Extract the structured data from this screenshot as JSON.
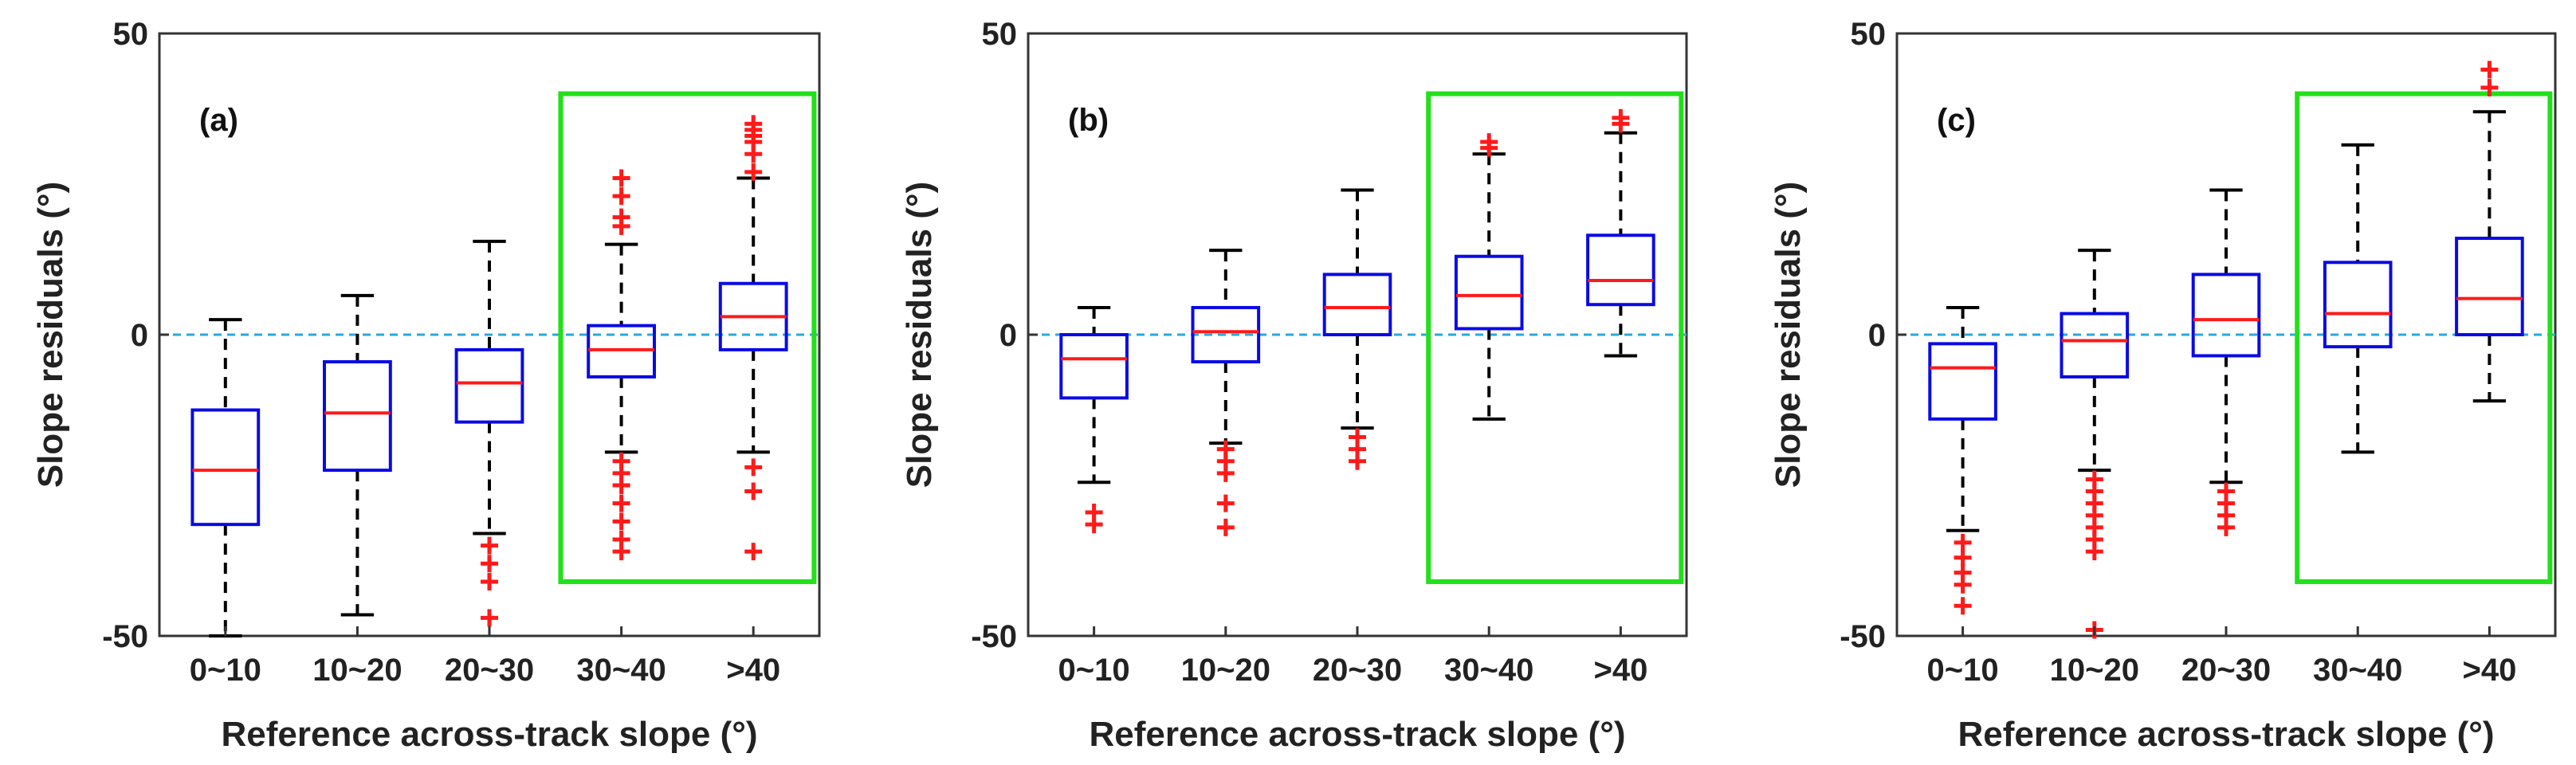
{
  "colors": {
    "box": "#0a0ae6",
    "median": "#ff1a1a",
    "outlier": "#ff1a1a",
    "whisker": "#000000",
    "zero_line": "#2aa8d8",
    "highlight": "#22e01a",
    "axes": "#333333"
  },
  "chart_data": [
    {
      "type": "box",
      "panel_label": "(a)",
      "xlabel": "Reference across-track slope (°)",
      "ylabel": "Slope residuals (°)",
      "ylim": [
        -50,
        50
      ],
      "yticks": [
        -50,
        0,
        50
      ],
      "categories": [
        "0~10",
        "10~20",
        "20~30",
        "30~40",
        ">40"
      ],
      "boxes": [
        {
          "whisker_low": -50,
          "q1": -31.5,
          "median": -22.5,
          "q3": -12.5,
          "whisker_high": 2.5,
          "outliers": []
        },
        {
          "whisker_low": -46.5,
          "q1": -22.5,
          "median": -13,
          "q3": -4.5,
          "whisker_high": 6.5,
          "outliers": []
        },
        {
          "whisker_low": -33,
          "q1": -14.5,
          "median": -8,
          "q3": -2.5,
          "whisker_high": 15.5,
          "outliers": [
            -35,
            -38,
            -41,
            -47
          ]
        },
        {
          "whisker_low": -19.5,
          "q1": -7,
          "median": -2.5,
          "q3": 1.5,
          "whisker_high": 15,
          "outliers": [
            -21,
            -23,
            -25,
            -28,
            -31,
            -34,
            -36,
            18,
            19.5,
            23,
            26
          ]
        },
        {
          "whisker_low": -19.5,
          "q1": -2.5,
          "median": 3,
          "q3": 8.5,
          "whisker_high": 26,
          "outliers": [
            -22,
            -26,
            -36,
            27,
            30,
            32,
            33,
            34,
            35
          ]
        }
      ],
      "reference_line": 0,
      "highlight_categories": [
        "30~40",
        ">40"
      ]
    },
    {
      "type": "box",
      "panel_label": "(b)",
      "xlabel": "Reference across-track slope (°)",
      "ylabel": "Slope residuals (°)",
      "ylim": [
        -50,
        50
      ],
      "yticks": [
        -50,
        0,
        50
      ],
      "categories": [
        "0~10",
        "10~20",
        "20~30",
        "30~40",
        ">40"
      ],
      "boxes": [
        {
          "whisker_low": -24.5,
          "q1": -10.5,
          "median": -4,
          "q3": 0,
          "whisker_high": 4.5,
          "outliers": [
            -29.5,
            -31.5
          ]
        },
        {
          "whisker_low": -18,
          "q1": -4.5,
          "median": 0.5,
          "q3": 4.5,
          "whisker_high": 14,
          "outliers": [
            -19,
            -21,
            -23,
            -28,
            -32
          ]
        },
        {
          "whisker_low": -15.5,
          "q1": 0,
          "median": 4.5,
          "q3": 10,
          "whisker_high": 24,
          "outliers": [
            -17,
            -19,
            -21
          ]
        },
        {
          "whisker_low": -14,
          "q1": 1,
          "median": 6.5,
          "q3": 13,
          "whisker_high": 30,
          "outliers": [
            31,
            32
          ]
        },
        {
          "whisker_low": -3.5,
          "q1": 5,
          "median": 9,
          "q3": 16.5,
          "whisker_high": 33.5,
          "outliers": [
            35,
            36
          ]
        }
      ],
      "reference_line": 0,
      "highlight_categories": [
        "30~40",
        ">40"
      ]
    },
    {
      "type": "box",
      "panel_label": "(c)",
      "xlabel": "Reference across-track slope (°)",
      "ylabel": "Slope residuals (°)",
      "ylim": [
        -50,
        50
      ],
      "yticks": [
        -50,
        0,
        50
      ],
      "categories": [
        "0~10",
        "10~20",
        "20~30",
        "30~40",
        ">40"
      ],
      "boxes": [
        {
          "whisker_low": -32.5,
          "q1": -14,
          "median": -5.5,
          "q3": -1.5,
          "whisker_high": 4.5,
          "outliers": [
            -34.5,
            -37,
            -39.5,
            -41.5,
            -45
          ]
        },
        {
          "whisker_low": -22.5,
          "q1": -7,
          "median": -1,
          "q3": 3.5,
          "whisker_high": 14,
          "outliers": [
            -24,
            -26,
            -28,
            -30,
            -32,
            -34,
            -36,
            -49
          ]
        },
        {
          "whisker_low": -24.5,
          "q1": -3.5,
          "median": 2.5,
          "q3": 10,
          "whisker_high": 24,
          "outliers": [
            -26,
            -28,
            -30,
            -32
          ]
        },
        {
          "whisker_low": -19.5,
          "q1": -2,
          "median": 3.5,
          "q3": 12,
          "whisker_high": 31.5,
          "outliers": []
        },
        {
          "whisker_low": -11,
          "q1": 0,
          "median": 6,
          "q3": 16,
          "whisker_high": 37,
          "outliers": [
            41,
            44
          ]
        }
      ],
      "reference_line": 0,
      "highlight_categories": [
        "30~40",
        ">40"
      ]
    }
  ]
}
